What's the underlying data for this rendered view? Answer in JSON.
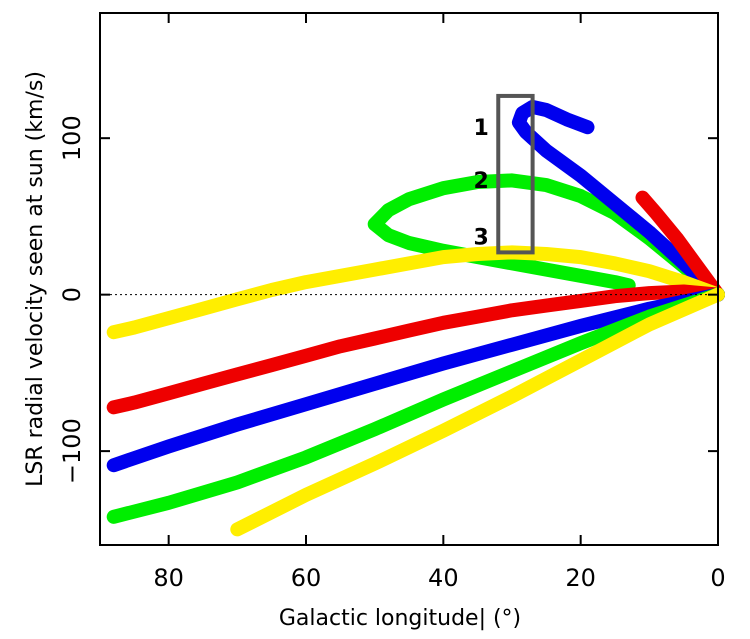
{
  "chart_data": {
    "type": "line",
    "title": "",
    "xlabel": "Galactic longitude| (°)",
    "ylabel": "LSR radial velocity seen at sun (km/s)",
    "xlim": [
      90,
      0
    ],
    "ylim": [
      -160,
      180
    ],
    "xticks": [
      80,
      60,
      40,
      20,
      0
    ],
    "yticks": [
      100,
      0,
      -100
    ],
    "ytick_labels": [
      "100",
      "0",
      "−100"
    ],
    "grid": false,
    "reference_line": {
      "y": 0,
      "style": "dotted"
    },
    "annotations": [
      {
        "text": "1",
        "x": 34.5,
        "y": 106
      },
      {
        "text": "2",
        "x": 34.5,
        "y": 72
      },
      {
        "text": "3",
        "x": 34.5,
        "y": 36
      }
    ],
    "box": {
      "x": [
        27,
        32
      ],
      "y": [
        27,
        127
      ],
      "color": "#555555"
    },
    "series": [
      {
        "color": "#00ee00",
        "points": [
          [
            0,
            0
          ],
          [
            5,
            18
          ],
          [
            10,
            36
          ],
          [
            15,
            52
          ],
          [
            20,
            63
          ],
          [
            25,
            70
          ],
          [
            30,
            73
          ],
          [
            35,
            72
          ],
          [
            40,
            68
          ],
          [
            45,
            61
          ],
          [
            48,
            54
          ],
          [
            50,
            45
          ],
          [
            48,
            38
          ],
          [
            45,
            33
          ],
          [
            40,
            28
          ],
          [
            35,
            24
          ],
          [
            30,
            20
          ],
          [
            25,
            16
          ],
          [
            20,
            12
          ],
          [
            15,
            8
          ],
          [
            13,
            6
          ]
        ]
      },
      {
        "color": "#0000ee",
        "points": [
          [
            0,
            0
          ],
          [
            5,
            20
          ],
          [
            10,
            40
          ],
          [
            15,
            58
          ],
          [
            20,
            76
          ],
          [
            25,
            92
          ],
          [
            28,
            104
          ],
          [
            29,
            110
          ],
          [
            28.5,
            116
          ],
          [
            27,
            120
          ],
          [
            25,
            118
          ],
          [
            22,
            112
          ],
          [
            19,
            107
          ]
        ]
      },
      {
        "color": "#ee0000",
        "points": [
          [
            0,
            0
          ],
          [
            3,
            18
          ],
          [
            6,
            36
          ],
          [
            9,
            52
          ],
          [
            11,
            62
          ]
        ]
      },
      {
        "color": "#ffee00",
        "points": [
          [
            0,
            0
          ],
          [
            5,
            8
          ],
          [
            10,
            15
          ],
          [
            15,
            20
          ],
          [
            20,
            24
          ],
          [
            25,
            26
          ],
          [
            30,
            27
          ],
          [
            35,
            26
          ],
          [
            40,
            24
          ],
          [
            45,
            20
          ],
          [
            50,
            16
          ],
          [
            55,
            12
          ],
          [
            60,
            8
          ],
          [
            65,
            3
          ],
          [
            70,
            -3
          ],
          [
            75,
            -9
          ],
          [
            80,
            -15
          ],
          [
            85,
            -21
          ],
          [
            88,
            -24
          ]
        ]
      },
      {
        "color": "#ee0000",
        "points": [
          [
            0,
            0
          ],
          [
            5,
            2
          ],
          [
            10,
            1
          ],
          [
            15,
            -1
          ],
          [
            20,
            -4
          ],
          [
            25,
            -7
          ],
          [
            30,
            -10
          ],
          [
            35,
            -14
          ],
          [
            40,
            -18
          ],
          [
            45,
            -23
          ],
          [
            50,
            -28
          ],
          [
            55,
            -33
          ],
          [
            60,
            -39
          ],
          [
            65,
            -45
          ],
          [
            70,
            -51
          ],
          [
            75,
            -57
          ],
          [
            80,
            -63
          ],
          [
            85,
            -69
          ],
          [
            88,
            -72
          ]
        ]
      },
      {
        "color": "#0000ee",
        "points": [
          [
            0,
            0
          ],
          [
            10,
            -9
          ],
          [
            20,
            -20
          ],
          [
            30,
            -32
          ],
          [
            40,
            -44
          ],
          [
            50,
            -57
          ],
          [
            60,
            -70
          ],
          [
            70,
            -83
          ],
          [
            80,
            -97
          ],
          [
            88,
            -109
          ]
        ]
      },
      {
        "color": "#00ee00",
        "points": [
          [
            0,
            0
          ],
          [
            10,
            -14
          ],
          [
            20,
            -31
          ],
          [
            30,
            -49
          ],
          [
            40,
            -67
          ],
          [
            50,
            -86
          ],
          [
            60,
            -104
          ],
          [
            70,
            -120
          ],
          [
            80,
            -133
          ],
          [
            88,
            -142
          ]
        ]
      },
      {
        "color": "#ffee00",
        "points": [
          [
            0,
            0
          ],
          [
            10,
            -19
          ],
          [
            20,
            -42
          ],
          [
            30,
            -65
          ],
          [
            40,
            -87
          ],
          [
            50,
            -108
          ],
          [
            60,
            -128
          ],
          [
            70,
            -150
          ]
        ]
      }
    ]
  }
}
